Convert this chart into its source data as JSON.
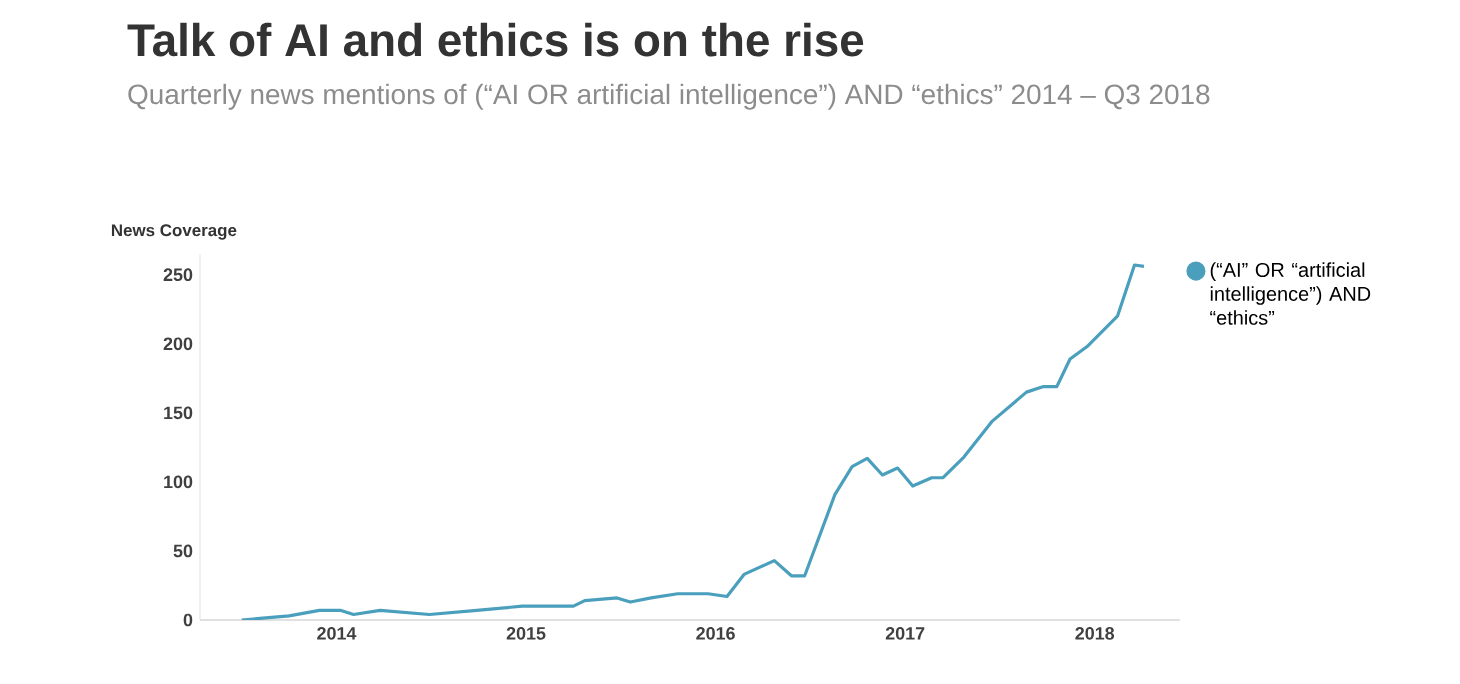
{
  "chart_data": {
    "type": "line",
    "title": "Talk of AI and ethics is on the rise",
    "subtitle": "Quarterly news mentions of (“AI OR artificial intelligence”) AND “ethics” 2014 – Q3 2018",
    "ylabel": "News Coverage",
    "x": [
      2014.0,
      2014.25,
      2014.41,
      2014.52,
      2014.59,
      2014.73,
      2014.99,
      2015.24,
      2015.48,
      2015.75,
      2015.81,
      2015.98,
      2016.05,
      2016.16,
      2016.3,
      2016.46,
      2016.56,
      2016.65,
      2016.81,
      2016.9,
      2016.97,
      2017.13,
      2017.22,
      2017.3,
      2017.38,
      2017.46,
      2017.54,
      2017.64,
      2017.7,
      2017.81,
      2017.96,
      2018.14,
      2018.23,
      2018.3,
      2018.37,
      2018.46,
      2018.62,
      2018.71,
      2018.76
    ],
    "series": [
      {
        "name": "(“AI” OR “artificial intelligence”) AND “ethics”",
        "color": "#4a9fbd",
        "values": [
          0,
          3,
          7,
          7,
          4,
          7,
          4,
          7,
          10,
          10,
          14,
          16,
          13,
          16,
          19,
          19,
          17,
          33,
          43,
          32,
          32,
          91,
          111,
          117,
          105,
          110,
          97,
          103,
          103,
          118,
          144,
          165,
          169,
          169,
          189,
          198,
          220,
          257,
          256
        ]
      }
    ],
    "xlim": [
      2013.78,
      2018.95
    ],
    "xticks": [
      {
        "value": 2014.5,
        "label": "2014"
      },
      {
        "value": 2015.5,
        "label": "2015"
      },
      {
        "value": 2016.5,
        "label": "2016"
      },
      {
        "value": 2017.5,
        "label": "2017"
      },
      {
        "value": 2018.5,
        "label": "2018"
      }
    ],
    "ylim": [
      0,
      265
    ],
    "yticks": [
      0,
      50,
      100,
      150,
      200,
      250
    ],
    "legend": "right"
  }
}
